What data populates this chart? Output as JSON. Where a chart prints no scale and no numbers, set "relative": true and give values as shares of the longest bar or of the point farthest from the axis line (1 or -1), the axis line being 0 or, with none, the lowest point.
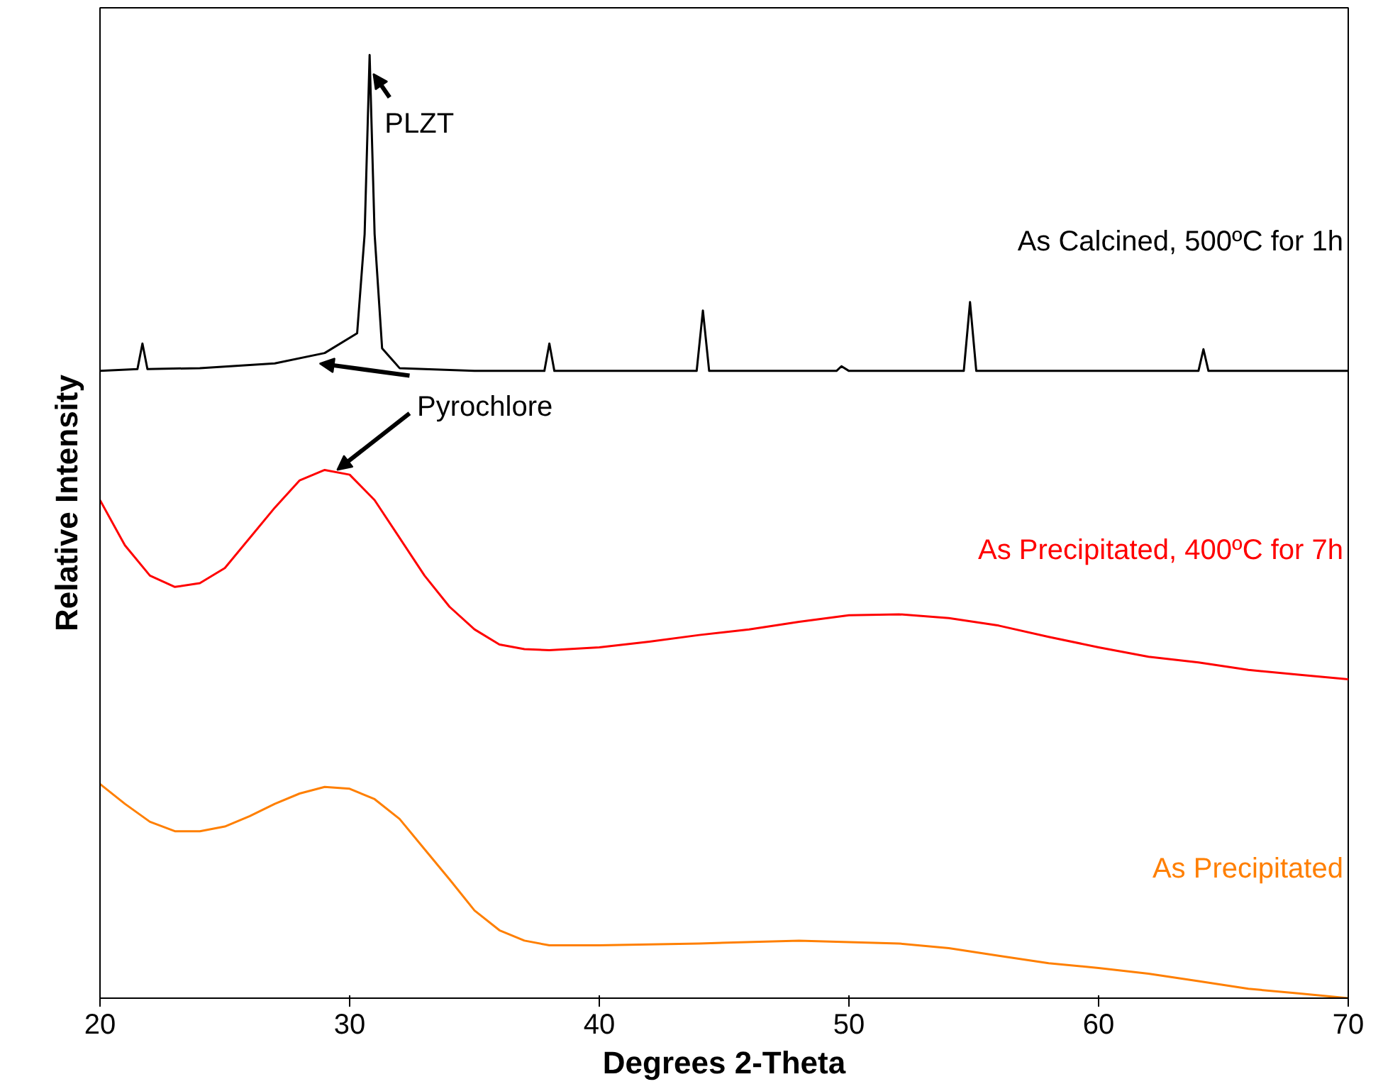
{
  "chart_data": {
    "type": "line",
    "relative": true,
    "xlabel": "Degrees 2-Theta",
    "ylabel": "Relative Intensity",
    "xlim": [
      20,
      70
    ],
    "xticks": [
      20,
      30,
      40,
      50,
      60,
      70
    ],
    "tick_labels": "x",
    "grid": false,
    "legend": false,
    "marker": "none",
    "line_style": "solid",
    "series": [
      {
        "name": "As Calcined, 500ºC for 1h",
        "color": "#000000",
        "x": [
          20,
          21.5,
          21.7,
          21.9,
          24,
          27,
          29,
          30.3,
          30.6,
          30.8,
          31.0,
          31.3,
          32,
          35,
          37.8,
          38.0,
          38.2,
          43.9,
          44.15,
          44.4,
          49.5,
          49.7,
          50,
          54.6,
          54.85,
          55.1,
          64.0,
          64.2,
          64.4,
          70
        ],
        "values": [
          0.665,
          0.667,
          0.694,
          0.667,
          0.668,
          0.673,
          0.684,
          0.705,
          0.81,
          1.0,
          0.81,
          0.689,
          0.668,
          0.665,
          0.665,
          0.694,
          0.665,
          0.665,
          0.729,
          0.665,
          0.665,
          0.67,
          0.665,
          0.665,
          0.738,
          0.665,
          0.665,
          0.688,
          0.665,
          0.665
        ]
      },
      {
        "name": "As Precipitated, 400ºC for 7h",
        "color": "#ff0000",
        "x": [
          20,
          21,
          22,
          23,
          24,
          25,
          26,
          27,
          28,
          29,
          30,
          31,
          32,
          33,
          34,
          35,
          36,
          37,
          38,
          40,
          42,
          44,
          46,
          48,
          50,
          52,
          54,
          56,
          58,
          60,
          62,
          64,
          66,
          68,
          70
        ],
        "values": [
          0.528,
          0.48,
          0.448,
          0.436,
          0.44,
          0.456,
          0.488,
          0.52,
          0.549,
          0.56,
          0.555,
          0.528,
          0.488,
          0.448,
          0.415,
          0.391,
          0.375,
          0.37,
          0.369,
          0.372,
          0.378,
          0.385,
          0.391,
          0.399,
          0.406,
          0.407,
          0.403,
          0.395,
          0.383,
          0.372,
          0.362,
          0.356,
          0.348,
          0.343,
          0.338
        ]
      },
      {
        "name": "As Precipitated",
        "color": "#ff7f00",
        "x": [
          20,
          21,
          22,
          23,
          24,
          25,
          26,
          27,
          28,
          29,
          30,
          31,
          32,
          33,
          34,
          35,
          36,
          37,
          38,
          40,
          44,
          48,
          52,
          54,
          56,
          58,
          60,
          62,
          64,
          66,
          68,
          70
        ],
        "values": [
          0.227,
          0.206,
          0.187,
          0.177,
          0.177,
          0.182,
          0.193,
          0.206,
          0.217,
          0.224,
          0.222,
          0.211,
          0.19,
          0.158,
          0.126,
          0.093,
          0.072,
          0.061,
          0.056,
          0.056,
          0.058,
          0.061,
          0.058,
          0.053,
          0.045,
          0.037,
          0.032,
          0.026,
          0.018,
          0.01,
          0.005,
          0.0
        ]
      }
    ],
    "annotations": [
      {
        "text": "PLZT",
        "x": 30.8,
        "y": 1.0
      },
      {
        "text": "Pyrochlore",
        "x": 29.5,
        "y": 0.56
      }
    ]
  }
}
